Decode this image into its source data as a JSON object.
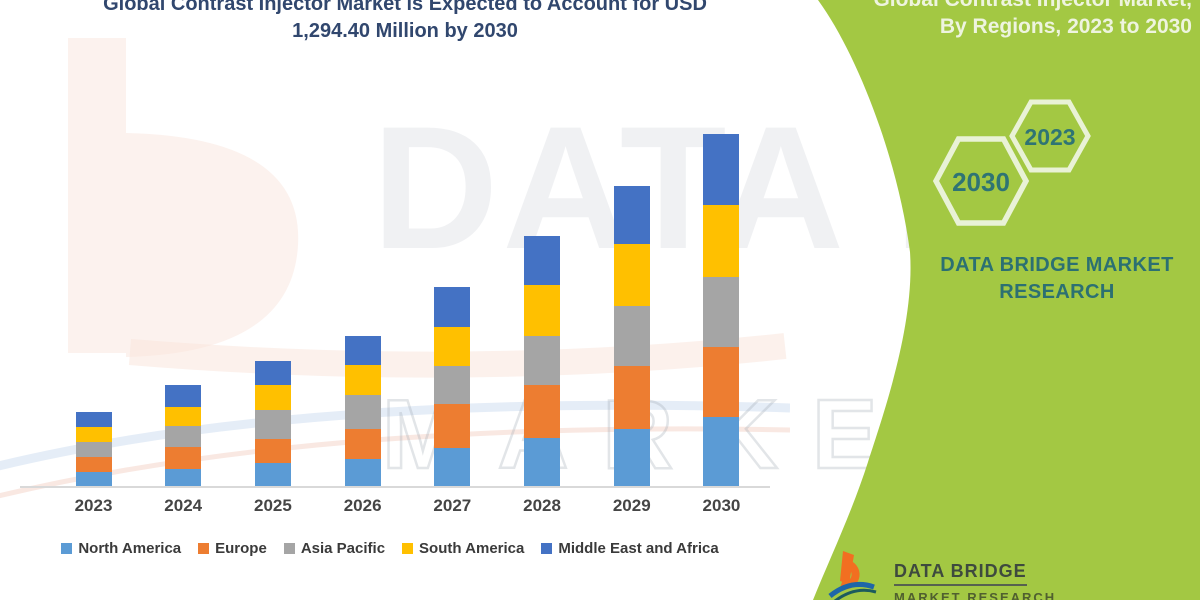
{
  "chart_data": {
    "type": "bar",
    "stacked": true,
    "title_line1": "Global Contrast Injector Market is Expected to Account for USD",
    "title_line2": "1,294.40 Million by 2030",
    "unit": "USD Million",
    "categories": [
      "2023",
      "2024",
      "2025",
      "2026",
      "2027",
      "2028",
      "2029",
      "2030"
    ],
    "series": [
      {
        "name": "North America",
        "color": "#5B9BD5",
        "values": [
          53.5,
          67.4,
          87.9,
          104.0,
          142.8,
          179.4,
          213.9,
          256.3
        ]
      },
      {
        "name": "Europe",
        "color": "#ED7D31",
        "values": [
          56.4,
          79.1,
          86.8,
          109.9,
          162.6,
          193.0,
          229.2,
          256.3
        ]
      },
      {
        "name": "Asia Pacific",
        "color": "#A5A5A5",
        "values": [
          54.9,
          76.9,
          106.2,
          121.9,
          137.7,
          180.5,
          219.7,
          256.3
        ]
      },
      {
        "name": "South America",
        "color": "#FFC000",
        "values": [
          53.5,
          69.6,
          91.6,
          112.4,
          142.8,
          188.2,
          228.5,
          265.1
        ]
      },
      {
        "name": "Middle East and Africa",
        "color": "#4472C4",
        "values": [
          56.4,
          79.5,
          87.9,
          104.7,
          146.5,
          178.0,
          210.9,
          260.4
        ]
      }
    ],
    "total_2030": 1294.4,
    "legend_position": "bottom",
    "axes": {
      "x_label": "",
      "y_label": "",
      "y_axis_visible": false,
      "gridlines": false
    }
  },
  "side_panel": {
    "background": "#A3C843",
    "title_line1": "Global Contrast Injector Market,",
    "title_line2": "By Regions, 2023 to 2030",
    "hexagons": [
      {
        "label": "2030"
      },
      {
        "label": "2023"
      }
    ],
    "brand_text": "DATA BRIDGE MARKET RESEARCH",
    "text_color": "#2C7072"
  },
  "footer_logo": {
    "line1": "DATA BRIDGE",
    "line2": "MARKET RESEARCH"
  },
  "watermark": {
    "line1": "DATA BRIDGE",
    "line2": "MARKET RESEARCH"
  },
  "colors": {
    "title_text": "#31476E",
    "axis_line": "#D9D9D9",
    "panel_green": "#A3C843",
    "hexagon_stroke": "#E9F2D6",
    "teal_text": "#2F7474"
  }
}
